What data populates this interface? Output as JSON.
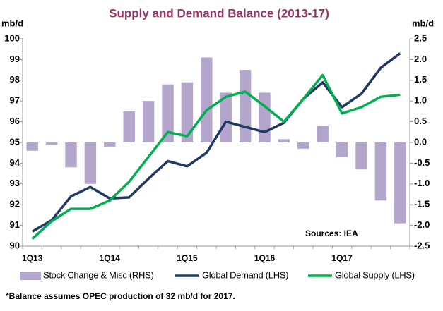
{
  "chart_data": {
    "type": "bar-line",
    "title": "Supply and Demand Balance (2013-17)",
    "y_label": "mb/d",
    "y2_label": "mb/d",
    "annotation": "Sources: IEA",
    "footnote": "*Balance assumes  OPEC production of 32 mb/d for 2017.",
    "categories": [
      "1Q13",
      null,
      null,
      null,
      "1Q14",
      null,
      null,
      null,
      "1Q15",
      null,
      null,
      null,
      "1Q16",
      null,
      null,
      null,
      "1Q17",
      null,
      null,
      null
    ],
    "series": [
      {
        "name": "Stock Change & Misc (RHS)",
        "kind": "bar",
        "axis": "y2",
        "color": "#b3a5cc",
        "values": [
          -0.2,
          -0.05,
          -0.6,
          -1.0,
          -0.1,
          0.75,
          1.0,
          1.4,
          1.45,
          2.05,
          1.2,
          1.75,
          1.2,
          0.08,
          -0.15,
          0.4,
          -0.35,
          -0.65,
          -1.4,
          -1.95
        ]
      },
      {
        "name": "Global Demand (LHS)",
        "kind": "line",
        "color": "#1f3864",
        "values": [
          90.7,
          91.25,
          92.4,
          92.85,
          92.3,
          92.35,
          93.25,
          94.1,
          93.85,
          94.5,
          96.0,
          95.75,
          95.5,
          95.95,
          97.1,
          97.9,
          96.7,
          97.35,
          98.6,
          99.3
        ]
      },
      {
        "name": "Global Supply (LHS)",
        "kind": "line",
        "color": "#00b050",
        "values": [
          90.35,
          91.2,
          91.8,
          91.8,
          92.2,
          93.1,
          94.3,
          95.5,
          95.3,
          96.55,
          97.2,
          97.45,
          96.75,
          96.0,
          97.1,
          98.25,
          96.4,
          96.7,
          97.2,
          97.3
        ]
      }
    ],
    "ylim": [
      90,
      100
    ],
    "yticks": [
      90,
      91,
      92,
      93,
      94,
      95,
      96,
      97,
      98,
      99,
      100
    ],
    "y2lim": [
      -2.5,
      2.5
    ],
    "y2ticks": [
      -2.5,
      {
        "value": -2,
        "label": "-2.0"
      },
      -1.5,
      {
        "value": -1,
        "label": "-1.0"
      },
      -0.5,
      {
        "value": 0,
        "label": "0.0"
      },
      0.5,
      {
        "value": 1,
        "label": "1.0"
      },
      1.5,
      {
        "value": 2,
        "label": "2.0"
      },
      2.5
    ]
  }
}
